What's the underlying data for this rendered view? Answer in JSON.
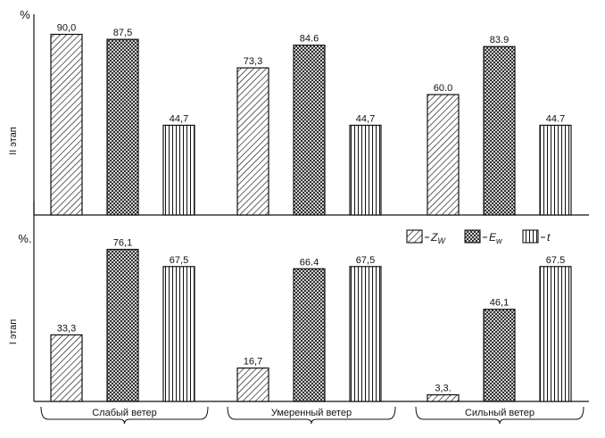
{
  "colors": {
    "ink": "#111111",
    "paper": "#ffffff"
  },
  "legend": {
    "placement": "middle-right",
    "items": [
      {
        "key": "Zw",
        "pattern": "diagonal-hatch",
        "label": "Z",
        "sub": "W"
      },
      {
        "key": "Ew",
        "pattern": "cross-hatch",
        "label": "E",
        "sub": "w"
      },
      {
        "key": "t",
        "pattern": "vertical-lines",
        "label": "t",
        "sub": ""
      }
    ]
  },
  "chart_data": [
    {
      "type": "bar",
      "ylabel": "II этап",
      "unit": "%",
      "categories": [
        "Слабый ветер",
        "Умеренный ветер",
        "Сильный ветер"
      ],
      "ylim": [
        0,
        100
      ],
      "grid": false,
      "series": [
        {
          "key": "Zw",
          "values": [
            90.0,
            73.3,
            60.0
          ],
          "labels": [
            "90,0",
            "73,3",
            "60.0"
          ]
        },
        {
          "key": "Ew",
          "values": [
            87.5,
            84.6,
            83.9
          ],
          "labels": [
            "87,5",
            "84.6",
            "83.9"
          ]
        },
        {
          "key": "t",
          "values": [
            44.7,
            44.7,
            44.7
          ],
          "labels": [
            "44,7",
            "44,7",
            "44.7"
          ]
        }
      ]
    },
    {
      "type": "bar",
      "ylabel": "I этап",
      "unit": "%.",
      "categories": [
        "Слабый ветер",
        "Умеренный ветер",
        "Сильный ветер"
      ],
      "ylim": [
        0,
        100
      ],
      "grid": false,
      "series": [
        {
          "key": "Zw",
          "values": [
            33.3,
            16.7,
            3.3
          ],
          "labels": [
            "33,3",
            "16,7",
            "3,3."
          ]
        },
        {
          "key": "Ew",
          "values": [
            76.1,
            66.4,
            46.1
          ],
          "labels": [
            "76,1",
            "66.4",
            "46,1"
          ]
        },
        {
          "key": "t",
          "values": [
            67.5,
            67.5,
            67.5
          ],
          "labels": [
            "67,5",
            "67,5",
            "67.5"
          ]
        }
      ]
    }
  ]
}
